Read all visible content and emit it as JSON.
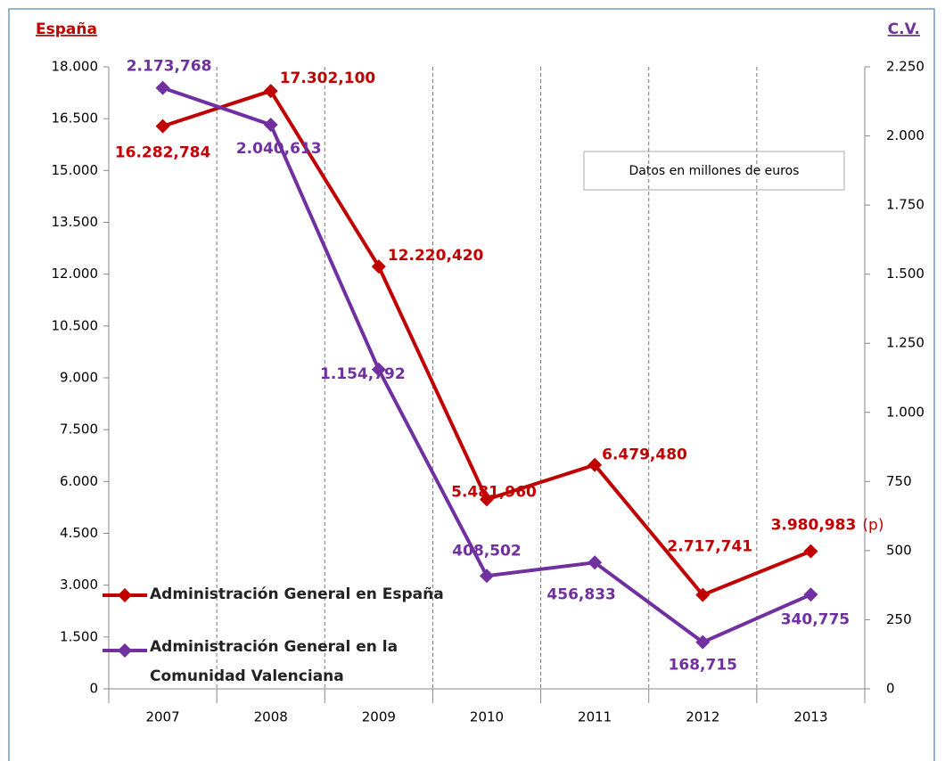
{
  "chart_data": {
    "type": "line",
    "categories": [
      "2007",
      "2008",
      "2009",
      "2010",
      "2011",
      "2012",
      "2013"
    ],
    "y_label": "España",
    "y2_label": "C.V.",
    "annotations": [
      "Datos en millones de euros",
      "(p)"
    ],
    "ylim": [
      0,
      18000
    ],
    "yticks": [
      0,
      {
        "value": 1500,
        "label": "1.500"
      },
      {
        "value": 3000,
        "label": "3.000"
      },
      {
        "value": 4500,
        "label": "4.500"
      },
      {
        "value": 6000,
        "label": "6.000"
      },
      {
        "value": 7500,
        "label": "7.500"
      },
      {
        "value": 9000,
        "label": "9.000"
      },
      {
        "value": 10500,
        "label": "10.500"
      },
      {
        "value": 12000,
        "label": "12.000"
      },
      {
        "value": 13500,
        "label": "13.500"
      },
      {
        "value": 15000,
        "label": "15.000"
      },
      {
        "value": 16500,
        "label": "16.500"
      },
      {
        "value": 18000,
        "label": "18.000"
      }
    ],
    "y2lim": [
      0,
      2250
    ],
    "y2ticks": [
      0,
      250,
      500,
      750,
      {
        "value": 1000,
        "label": "1.000"
      },
      {
        "value": 1250,
        "label": "1.250"
      },
      {
        "value": 1500,
        "label": "1.500"
      },
      {
        "value": 1750,
        "label": "1.750"
      },
      {
        "value": 2000,
        "label": "2.000"
      },
      {
        "value": 2250,
        "label": "2.250"
      }
    ],
    "legend": "lower left",
    "series": [
      {
        "name": "Administración General en España",
        "color": "#c00000",
        "values": [
          16282.784,
          17302.1,
          12220.42,
          5481.96,
          6479.48,
          2717.741,
          3980.983
        ],
        "value_labels": [
          "16.282,784",
          "17.302,100",
          "12.220,420",
          "5.481,960",
          "6.479,480",
          "2.717,741",
          "3.980,983"
        ]
      },
      {
        "name": "Administración General en la Comunidad Valenciana",
        "color": "#7030a0",
        "axis": "y2",
        "values": [
          2173.768,
          2040.613,
          1154.792,
          408.502,
          456.833,
          168.715,
          340.775
        ],
        "value_labels": [
          "2.173,768",
          "2.040,613",
          "1.154,792",
          "408,502",
          "456,833",
          "168,715",
          "340,775"
        ]
      }
    ]
  }
}
